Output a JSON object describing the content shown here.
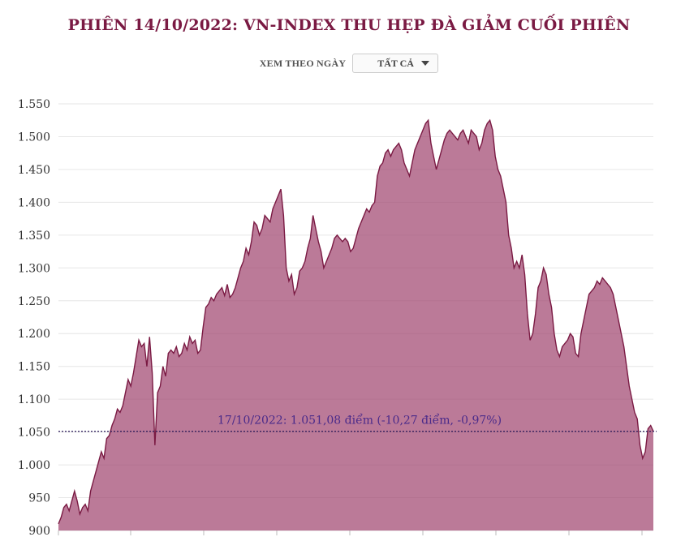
{
  "header": {
    "title": "PHIÊN 14/10/2022: VN-INDEX THU HẸP ĐÀ GIẢM CUỐI PHIÊN"
  },
  "filter": {
    "label": "XEM THEO NGÀY",
    "selected": "TẤT CẢ"
  },
  "colors": {
    "title": "#7a1a43",
    "line": "#7a1a43",
    "area": "#a14670",
    "annotation": "#4a2a8a",
    "grid": "#e6e6e6"
  },
  "chart_data": {
    "type": "area",
    "title": "PHIÊN 14/10/2022: VN-INDEX THU HẸP ĐÀ GIẢM CUỐI PHIÊN",
    "ylim": [
      900,
      1550
    ],
    "yticks": [
      900,
      950,
      1000,
      1050,
      1100,
      1150,
      1200,
      1250,
      1300,
      1350,
      1400,
      1450,
      1500,
      1550
    ],
    "ytick_labels": [
      "900",
      "950",
      "1.000",
      "1.050",
      "1.100",
      "1.150",
      "1.200",
      "1.250",
      "1.300",
      "1.350",
      "1.400",
      "1.450",
      "1.500",
      "1.550"
    ],
    "series": [
      {
        "name": "VN-Index",
        "values": [
          910,
          920,
          935,
          940,
          930,
          945,
          960,
          945,
          925,
          935,
          940,
          930,
          960,
          975,
          990,
          1005,
          1020,
          1010,
          1040,
          1045,
          1060,
          1070,
          1085,
          1080,
          1090,
          1110,
          1130,
          1120,
          1140,
          1165,
          1190,
          1180,
          1185,
          1150,
          1195,
          1140,
          1030,
          1110,
          1120,
          1150,
          1135,
          1170,
          1175,
          1170,
          1180,
          1165,
          1170,
          1185,
          1175,
          1195,
          1185,
          1190,
          1170,
          1175,
          1210,
          1240,
          1245,
          1255,
          1250,
          1260,
          1265,
          1270,
          1258,
          1275,
          1255,
          1260,
          1270,
          1285,
          1300,
          1310,
          1330,
          1320,
          1340,
          1370,
          1365,
          1350,
          1360,
          1380,
          1375,
          1370,
          1390,
          1400,
          1410,
          1420,
          1380,
          1300,
          1280,
          1290,
          1260,
          1270,
          1295,
          1300,
          1310,
          1330,
          1345,
          1380,
          1360,
          1340,
          1325,
          1300,
          1310,
          1320,
          1330,
          1345,
          1350,
          1345,
          1340,
          1345,
          1340,
          1325,
          1330,
          1345,
          1360,
          1370,
          1380,
          1390,
          1385,
          1395,
          1400,
          1440,
          1455,
          1460,
          1475,
          1480,
          1470,
          1480,
          1485,
          1490,
          1480,
          1460,
          1450,
          1440,
          1460,
          1480,
          1490,
          1500,
          1510,
          1520,
          1525,
          1490,
          1470,
          1450,
          1465,
          1480,
          1495,
          1505,
          1510,
          1505,
          1500,
          1495,
          1505,
          1510,
          1500,
          1490,
          1510,
          1505,
          1500,
          1480,
          1490,
          1510,
          1520,
          1525,
          1510,
          1470,
          1450,
          1440,
          1420,
          1400,
          1350,
          1330,
          1300,
          1310,
          1300,
          1320,
          1290,
          1230,
          1190,
          1200,
          1230,
          1270,
          1280,
          1300,
          1290,
          1260,
          1240,
          1200,
          1175,
          1165,
          1180,
          1185,
          1190,
          1200,
          1195,
          1170,
          1165,
          1200,
          1220,
          1240,
          1260,
          1265,
          1270,
          1280,
          1275,
          1285,
          1280,
          1275,
          1270,
          1260,
          1240,
          1220,
          1200,
          1180,
          1150,
          1120,
          1100,
          1080,
          1070,
          1030,
          1010,
          1020,
          1055,
          1060,
          1051.08
        ]
      }
    ],
    "annotation": {
      "text": "17/10/2022: 1.051,08 điểm (-10,27 điểm, -0,97%)",
      "value": 1051.08
    }
  }
}
